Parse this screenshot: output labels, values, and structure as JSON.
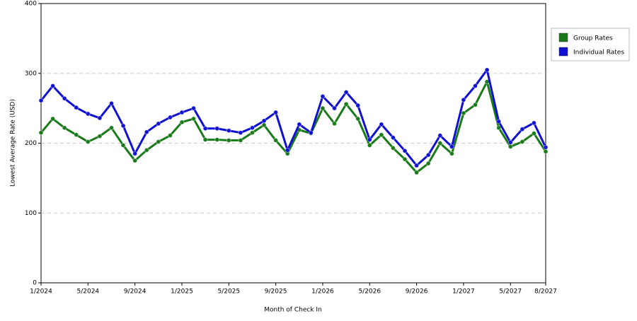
{
  "chart_data": {
    "type": "line",
    "y_label": "Lowest Average Rate (USD)",
    "x_label": "Month of Check In",
    "categories": [
      "1/2024",
      null,
      null,
      null,
      "5/2024",
      null,
      null,
      null,
      "9/2024",
      null,
      null,
      null,
      "1/2025",
      null,
      null,
      null,
      "5/2025",
      null,
      null,
      null,
      "9/2025",
      null,
      null,
      null,
      "1/2026",
      null,
      null,
      null,
      "5/2026",
      null,
      null,
      null,
      "9/2026",
      null,
      null,
      null,
      "1/2027",
      null,
      null,
      null,
      "5/2027",
      null,
      null,
      "8/2027"
    ],
    "series": [
      {
        "name": "Group Rates",
        "color": "#1a7a1a",
        "values": [
          215,
          235,
          222,
          212,
          202,
          210,
          222,
          197,
          175,
          190,
          202,
          211,
          230,
          235,
          205,
          205,
          204,
          204,
          215,
          226,
          204,
          185,
          219,
          214,
          250,
          228,
          256,
          235,
          197,
          212,
          193,
          177,
          158,
          171,
          200,
          185,
          243,
          255,
          288,
          222,
          195,
          202,
          214,
          188
        ]
      },
      {
        "name": "Individual Rates",
        "color": "#1010d0",
        "values": [
          261,
          282,
          264,
          251,
          242,
          236,
          257,
          225,
          185,
          216,
          228,
          237,
          244,
          250,
          221,
          221,
          218,
          215,
          222,
          232,
          244,
          190,
          227,
          215,
          267,
          250,
          273,
          254,
          205,
          227,
          208,
          189,
          168,
          183,
          211,
          195,
          262,
          282,
          305,
          231,
          201,
          220,
          229,
          194
        ]
      }
    ],
    "ylim": [
      0,
      400
    ],
    "yticks": [
      0,
      100,
      200,
      300,
      400
    ],
    "grid": true,
    "legend": "right"
  }
}
